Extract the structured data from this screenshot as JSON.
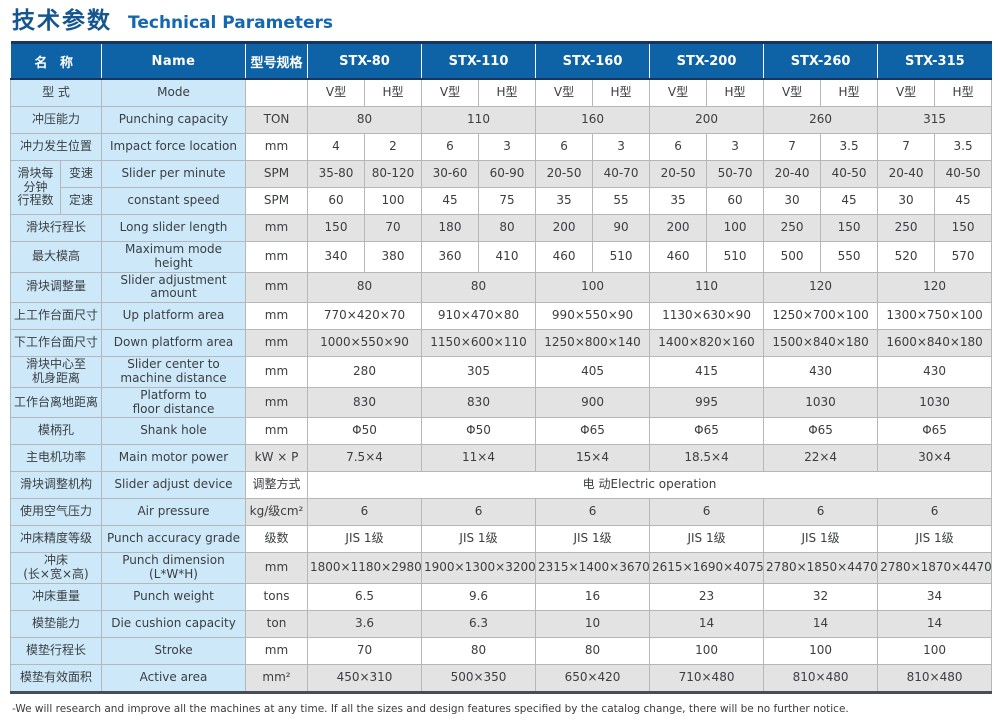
{
  "page": {
    "title_cn": "技术参数",
    "title_en": "Technical Parameters",
    "footnote": "-We will research and improve all the machines at any time. If all the sizes and design features specified by the catalog change, there will be no further notice."
  },
  "colors": {
    "header_blue": "#0d63a6",
    "label_blue": "#cde9f9",
    "stripe_gray": "#e3e3e3",
    "navy_border": "#17355e",
    "title_blue": "#15568f"
  },
  "table": {
    "header": {
      "name_cn": "名 称",
      "name_en": "Name",
      "spec": "型号规格",
      "models": [
        "STX-80",
        "STX-110",
        "STX-160",
        "STX-200",
        "STX-260",
        "STX-315"
      ]
    },
    "rows": [
      {
        "cn": "型 式",
        "en": "Mode",
        "unit": "",
        "span": 1,
        "values": [
          "V型",
          "H型",
          "V型",
          "H型",
          "V型",
          "H型",
          "V型",
          "H型",
          "V型",
          "H型",
          "V型",
          "H型"
        ]
      },
      {
        "cn": "冲压能力",
        "en": "Punching capacity",
        "unit": "TON",
        "span": 2,
        "values": [
          "80",
          "110",
          "160",
          "200",
          "260",
          "315"
        ]
      },
      {
        "cn": "冲力发生位置",
        "en": "Impact force location",
        "unit": "mm",
        "span": 1,
        "values": [
          "4",
          "2",
          "6",
          "3",
          "6",
          "3",
          "6",
          "3",
          "7",
          "3.5",
          "7",
          "3.5"
        ]
      },
      {
        "group": "滑块每\n分钟\n行程数",
        "group_span": 2,
        "sub": "变速",
        "en": "Slider per minute",
        "unit": "SPM",
        "span": 1,
        "values": [
          "35-80",
          "80-120",
          "30-60",
          "60-90",
          "20-50",
          "40-70",
          "20-50",
          "50-70",
          "20-40",
          "40-50",
          "20-40",
          "40-50"
        ]
      },
      {
        "sub": "定速",
        "en": "constant speed",
        "unit": "SPM",
        "span": 1,
        "values": [
          "60",
          "100",
          "45",
          "75",
          "35",
          "55",
          "35",
          "60",
          "30",
          "45",
          "30",
          "45"
        ]
      },
      {
        "cn": "滑块行程长",
        "en": "Long slider length",
        "unit": "mm",
        "span": 1,
        "values": [
          "150",
          "70",
          "180",
          "80",
          "200",
          "90",
          "200",
          "100",
          "250",
          "150",
          "250",
          "150"
        ]
      },
      {
        "cn": "最大模高",
        "en": "Maximum mode height",
        "unit": "mm",
        "span": 1,
        "values": [
          "340",
          "380",
          "360",
          "410",
          "460",
          "510",
          "460",
          "510",
          "500",
          "550",
          "520",
          "570"
        ]
      },
      {
        "cn": "滑块调整量",
        "en": "Slider adjustment\namount",
        "unit": "mm",
        "span": 2,
        "values": [
          "80",
          "80",
          "100",
          "110",
          "120",
          "120"
        ]
      },
      {
        "cn": "上工作台面尺寸",
        "en": "Up platform area",
        "unit": "mm",
        "span": 2,
        "values": [
          "770×420×70",
          "910×470×80",
          "990×550×90",
          "1130×630×90",
          "1250×700×100",
          "1300×750×100"
        ]
      },
      {
        "cn": "下工作台面尺寸",
        "en": "Down platform area",
        "unit": "mm",
        "span": 2,
        "values": [
          "1000×550×90",
          "1150×600×110",
          "1250×800×140",
          "1400×820×160",
          "1500×840×180",
          "1600×840×180"
        ]
      },
      {
        "cn": "滑块中心至\n机身距离",
        "en": "Slider center to\nmachine distance",
        "unit": "mm",
        "span": 2,
        "values": [
          "280",
          "305",
          "405",
          "415",
          "430",
          "430"
        ]
      },
      {
        "cn": "工作台离地距离",
        "en": "Platform to\nfloor distance",
        "unit": "mm",
        "span": 2,
        "values": [
          "830",
          "830",
          "900",
          "995",
          "1030",
          "1030"
        ]
      },
      {
        "cn": "模柄孔",
        "en": "Shank hole",
        "unit": "mm",
        "span": 2,
        "values": [
          "Φ50",
          "Φ50",
          "Φ65",
          "Φ65",
          "Φ65",
          "Φ65"
        ]
      },
      {
        "cn": "主电机功率",
        "en": "Main motor power",
        "unit": "kW × P",
        "span": 2,
        "values": [
          "7.5×4",
          "11×4",
          "15×4",
          "18.5×4",
          "22×4",
          "30×4"
        ]
      },
      {
        "cn": "滑块调整机构",
        "en": "Slider adjust device",
        "unit": "调整方式",
        "span": 12,
        "values": [
          "电 动Electric operation"
        ]
      },
      {
        "cn": "使用空气压力",
        "en": "Air pressure",
        "unit": "kg/级cm²",
        "span": 2,
        "values": [
          "6",
          "6",
          "6",
          "6",
          "6",
          "6"
        ]
      },
      {
        "cn": "冲床精度等级",
        "en": "Punch accuracy grade",
        "unit": "级数",
        "span": 2,
        "values": [
          "JIS 1级",
          "JIS 1级",
          "JIS 1级",
          "JIS 1级",
          "JIS 1级",
          "JIS 1级"
        ]
      },
      {
        "cn": "冲床\n(长×宽×高)",
        "en": "Punch dimension\n(L*W*H)",
        "unit": "mm",
        "span": 2,
        "values": [
          "1800×1180×2980",
          "1900×1300×3200",
          "2315×1400×3670",
          "2615×1690×4075",
          "2780×1850×4470",
          "2780×1870×4470"
        ]
      },
      {
        "cn": "冲床重量",
        "en": "Punch weight",
        "unit": "tons",
        "span": 2,
        "values": [
          "6.5",
          "9.6",
          "16",
          "23",
          "32",
          "34"
        ]
      },
      {
        "cn": "模垫能力",
        "en": "Die cushion capacity",
        "unit": "ton",
        "span": 2,
        "values": [
          "3.6",
          "6.3",
          "10",
          "14",
          "14",
          "14"
        ]
      },
      {
        "cn": "模垫行程长",
        "en": "Stroke",
        "unit": "mm",
        "span": 2,
        "values": [
          "70",
          "80",
          "80",
          "100",
          "100",
          "100"
        ]
      },
      {
        "cn": "模垫有效面积",
        "en": "Active area",
        "unit": "mm²",
        "span": 2,
        "values": [
          "450×310",
          "500×350",
          "650×420",
          "710×480",
          "810×480",
          "810×480"
        ]
      }
    ]
  }
}
